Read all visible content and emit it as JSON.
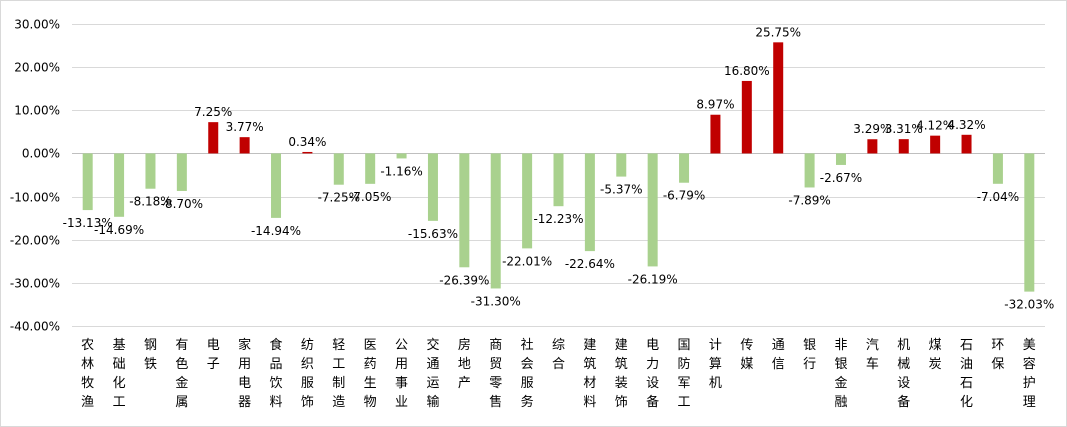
{
  "chart_data": {
    "type": "bar",
    "title": "",
    "xlabel": "",
    "ylabel": "",
    "ylim": [
      -40,
      30
    ],
    "yticks": [
      30,
      20,
      10,
      0,
      -10,
      -20,
      -30,
      -40
    ],
    "ytick_labels": [
      "30.00%",
      "20.00%",
      "10.00%",
      "0.00%",
      "-10.00%",
      "-20.00%",
      "-30.00%",
      "-40.00%"
    ],
    "grid": true,
    "colors": {
      "positive": "#c00000",
      "negative": "#a9d18e"
    },
    "categories": [
      "农林牧渔",
      "基础化工",
      "钢铁",
      "有色金属",
      "电子",
      "家用电器",
      "食品饮料",
      "纺织服饰",
      "轻工制造",
      "医药生物",
      "公用事业",
      "交通运输",
      "房地产",
      "商贸零售",
      "社会服务",
      "综合",
      "建筑材料",
      "建筑装饰",
      "电力设备",
      "国防军工",
      "计算机",
      "传媒",
      "通信",
      "银行",
      "非银金融",
      "汽车",
      "机械设备",
      "煤炭",
      "石油石化",
      "环保",
      "美容护理"
    ],
    "values": [
      -13.13,
      -14.69,
      -8.18,
      -8.7,
      7.25,
      3.77,
      -14.94,
      0.34,
      -7.25,
      -7.05,
      -1.16,
      -15.63,
      -26.39,
      -31.3,
      -22.01,
      -12.23,
      -22.64,
      -5.37,
      -26.19,
      -6.79,
      8.97,
      16.8,
      25.75,
      -7.89,
      -2.67,
      3.29,
      3.31,
      4.12,
      4.32,
      -7.04,
      -32.03
    ],
    "value_labels": [
      "-13.13%",
      "-14.69%",
      "-8.18%",
      "-8.70%",
      "7.25%",
      "3.77%",
      "-14.94%",
      "0.34%",
      "-7.25%",
      "-7.05%",
      "-1.16%",
      "-15.63%",
      "-26.39%",
      "-31.30%",
      "-22.01%",
      "-12.23%",
      "-22.64%",
      "-5.37%",
      "-26.19%",
      "-6.79%",
      "8.97%",
      "16.80%",
      "25.75%",
      "-7.89%",
      "-2.67%",
      "3.29%",
      "3.31%",
      "4.12%",
      "4.32%",
      "-7.04%",
      "-32.03%"
    ]
  }
}
